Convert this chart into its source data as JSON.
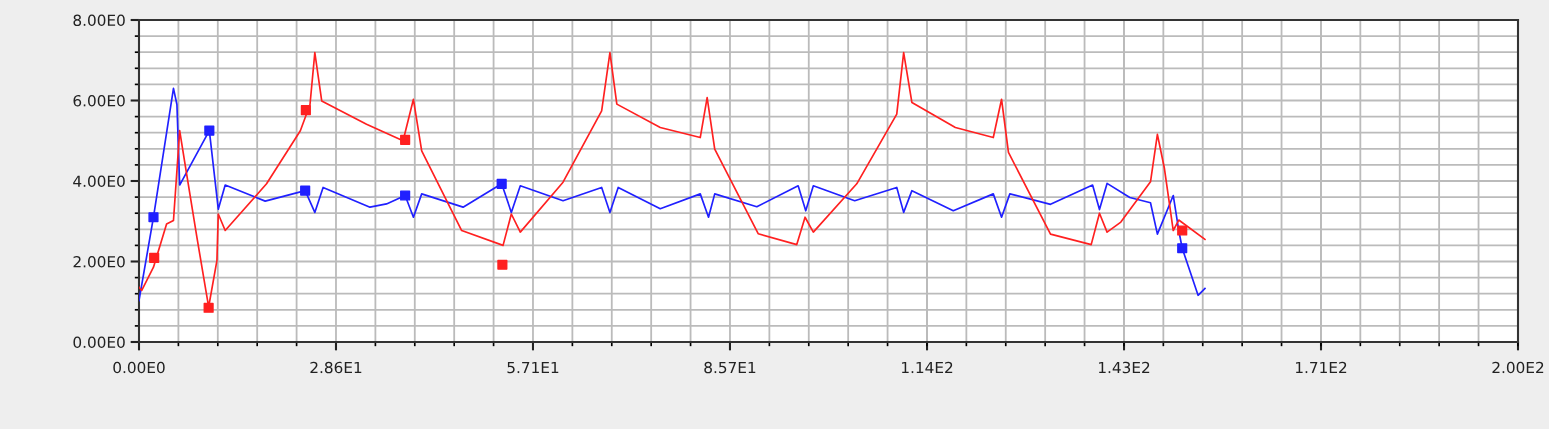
{
  "chart_data": {
    "type": "line",
    "grid": true,
    "marker": "none",
    "line_style": "solid",
    "xlim": [
      0,
      200
    ],
    "ylim": [
      0,
      8
    ],
    "xticks": [
      {
        "value": 0,
        "label": "0.00E0"
      },
      {
        "value": 28.57,
        "label": "2.86E1"
      },
      {
        "value": 57.14,
        "label": "5.71E1"
      },
      {
        "value": 85.71,
        "label": "8.57E1"
      },
      {
        "value": 114.29,
        "label": "1.14E2"
      },
      {
        "value": 142.86,
        "label": "1.43E2"
      },
      {
        "value": 171.43,
        "label": "1.71E2"
      },
      {
        "value": 200,
        "label": "2.00E2"
      }
    ],
    "yticks": [
      {
        "value": 0,
        "label": "0.00E0"
      },
      {
        "value": 2,
        "label": "2.00E0"
      },
      {
        "value": 4,
        "label": "4.00E0"
      },
      {
        "value": 6,
        "label": "6.00E0"
      },
      {
        "value": 8,
        "label": "8.00E0"
      }
    ],
    "series": [
      {
        "color": "#2020ff",
        "x": [
          0,
          2.1,
          5.0,
          5.5,
          5.9,
          10.2,
          11.5,
          12.5,
          18.3,
          24.1,
          25.5,
          26.7,
          33.5,
          35.9,
          38.6,
          39.8,
          41.0,
          47.0,
          52.6,
          54.0,
          55.3,
          61.5,
          67.1,
          68.3,
          69.5,
          75.6,
          81.4,
          82.6,
          83.5,
          89.6,
          95.6,
          96.7,
          97.8,
          103.8,
          109.9,
          110.9,
          112.1,
          118.1,
          123.9,
          125.1,
          126.3,
          132.2,
          138.3,
          139.3,
          140.4,
          143.7,
          146.7,
          147.7,
          150.0,
          150.8,
          151.3,
          153.6,
          154.6
        ],
        "values": [
          1.03,
          3.1,
          6.3,
          5.9,
          3.9,
          5.25,
          3.3,
          3.9,
          3.5,
          3.76,
          3.22,
          3.84,
          3.35,
          3.43,
          3.64,
          3.1,
          3.68,
          3.35,
          3.93,
          3.22,
          3.88,
          3.51,
          3.84,
          3.22,
          3.84,
          3.31,
          3.68,
          3.1,
          3.68,
          3.36,
          3.88,
          3.26,
          3.88,
          3.51,
          3.84,
          3.22,
          3.76,
          3.26,
          3.68,
          3.1,
          3.68,
          3.42,
          3.9,
          3.29,
          3.94,
          3.59,
          3.46,
          2.68,
          3.64,
          2.77,
          2.33,
          1.16,
          1.33
        ]
      },
      {
        "color": "#ff2020",
        "x": [
          0,
          0.4,
          2.1,
          4.0,
          5.0,
          5.9,
          6.6,
          8.4,
          10.1,
          11.3,
          11.5,
          12.5,
          18.5,
          23.4,
          24.8,
          25.5,
          26.5,
          33.0,
          38.3,
          39.8,
          41.0,
          46.8,
          52.8,
          54.0,
          55.3,
          61.5,
          67.1,
          68.3,
          69.3,
          75.6,
          81.4,
          82.4,
          83.5,
          89.8,
          95.4,
          96.6,
          97.8,
          104.1,
          109.9,
          110.9,
          112.1,
          118.4,
          123.9,
          125.1,
          126.1,
          132.2,
          138.1,
          139.3,
          140.4,
          142.4,
          146.7,
          147.7,
          148.7,
          150.0,
          150.8,
          154.6
        ],
        "values": [
          1.36,
          1.28,
          1.86,
          2.93,
          3.02,
          5.25,
          4.5,
          2.6,
          0.87,
          2.02,
          3.18,
          2.77,
          3.93,
          5.25,
          5.9,
          7.19,
          5.99,
          5.41,
          5.0,
          6.03,
          4.75,
          2.77,
          2.4,
          3.18,
          2.73,
          3.97,
          5.74,
          7.19,
          5.91,
          5.33,
          5.08,
          6.07,
          4.79,
          2.69,
          2.42,
          3.1,
          2.73,
          3.93,
          5.66,
          7.19,
          5.95,
          5.33,
          5.08,
          6.03,
          4.71,
          2.68,
          2.42,
          3.2,
          2.73,
          2.98,
          3.98,
          5.16,
          4.33,
          2.77,
          3.03,
          2.55
        ]
      },
      {
        "type": "scatter",
        "marker": "square",
        "color": "#2020ff",
        "x": [
          2.1,
          10.2,
          24.1,
          38.6,
          52.6,
          151.3
        ],
        "values": [
          3.1,
          5.25,
          3.76,
          3.64,
          3.93,
          2.33
        ]
      },
      {
        "type": "scatter",
        "marker": "square",
        "color": "#ff2020",
        "x": [
          2.2,
          10.1,
          24.2,
          38.6,
          52.7,
          151.3
        ],
        "values": [
          2.09,
          0.85,
          5.76,
          5.02,
          1.92,
          2.77
        ]
      }
    ]
  }
}
